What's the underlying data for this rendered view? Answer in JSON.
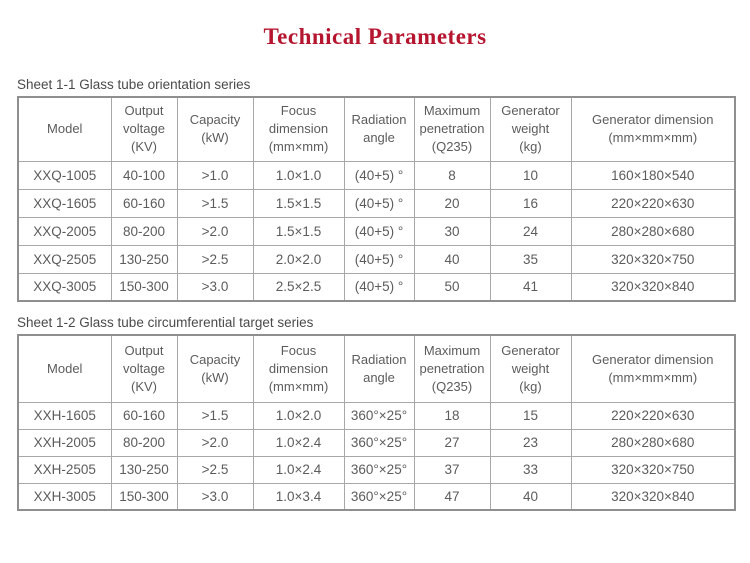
{
  "page": {
    "title": "Technical Parameters",
    "title_color": "#b5152e",
    "text_color": "#5c5c5c"
  },
  "tables": [
    {
      "caption": "Sheet 1-1 Glass tube orientation series",
      "headers": [
        [
          "Model"
        ],
        [
          "Output",
          "voltage",
          "(KV)"
        ],
        [
          "Capacity",
          "(kW)"
        ],
        [
          "Focus",
          "dimension",
          "(mm×mm)"
        ],
        [
          "Radiation",
          "angle"
        ],
        [
          "Maximum",
          "penetration",
          "(Q235)"
        ],
        [
          "Generator",
          "weight",
          "(kg)"
        ],
        [
          "Generator dimension",
          "(mm×mm×mm)"
        ]
      ],
      "rows": [
        [
          "XXQ-1005",
          "40-100",
          ">1.0",
          "1.0×1.0",
          "(40+5) °",
          "8",
          "10",
          "160×180×540"
        ],
        [
          "XXQ-1605",
          "60-160",
          ">1.5",
          "1.5×1.5",
          "(40+5) °",
          "20",
          "16",
          "220×220×630"
        ],
        [
          "XXQ-2005",
          "80-200",
          ">2.0",
          "1.5×1.5",
          "(40+5) °",
          "30",
          "24",
          "280×280×680"
        ],
        [
          "XXQ-2505",
          "130-250",
          ">2.5",
          "2.0×2.0",
          "(40+5) °",
          "40",
          "35",
          "320×320×750"
        ],
        [
          "XXQ-3005",
          "150-300",
          ">3.0",
          "2.5×2.5",
          "(40+5) °",
          "50",
          "41",
          "320×320×840"
        ]
      ]
    },
    {
      "caption": "Sheet 1-2 Glass tube circumferential target series",
      "headers": [
        [
          "Model"
        ],
        [
          "Output",
          "voltage",
          "(KV)"
        ],
        [
          "Capacity",
          "(kW)"
        ],
        [
          "Focus",
          "dimension",
          "(mm×mm)"
        ],
        [
          "Radiation",
          "angle"
        ],
        [
          "Maximum",
          "penetration",
          "(Q235)"
        ],
        [
          "Generator",
          "weight",
          "(kg)"
        ],
        [
          "Generator dimension",
          "(mm×mm×mm)"
        ]
      ],
      "rows": [
        [
          "XXH-1605",
          "60-160",
          ">1.5",
          "1.0×2.0",
          "360°×25°",
          "18",
          "15",
          "220×220×630"
        ],
        [
          "XXH-2005",
          "80-200",
          ">2.0",
          "1.0×2.4",
          "360°×25°",
          "27",
          "23",
          "280×280×680"
        ],
        [
          "XXH-2505",
          "130-250",
          ">2.5",
          "1.0×2.4",
          "360°×25°",
          "37",
          "33",
          "320×320×750"
        ],
        [
          "XXH-3005",
          "150-300",
          ">3.0",
          "1.0×3.4",
          "360°×25°",
          "47",
          "40",
          "320×320×840"
        ]
      ]
    }
  ]
}
